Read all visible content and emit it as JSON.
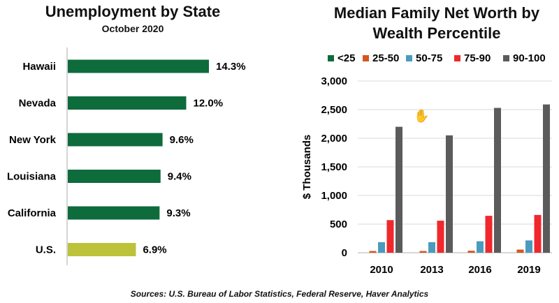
{
  "titles": {
    "left_title": "Unemployment by State",
    "left_subtitle": "October 2020",
    "right_title_line1": "Median Family Net Worth by",
    "right_title_line2": "Wealth Percentile"
  },
  "source": "Sources: U.S. Bureau of Labor Statistics, Federal Reserve, Haver Analytics",
  "colors": {
    "state_bar": "#0e6b3c",
    "us_bar": "#bcc23a",
    "axis": "#c8c8c8",
    "grid": "#d9d9d9",
    "series": [
      "#0e6b3c",
      "#d3581f",
      "#4a9bbd",
      "#f0282d",
      "#5b5b5b"
    ]
  },
  "chart_data": [
    {
      "type": "bar",
      "orientation": "horizontal",
      "title": "Unemployment by State",
      "subtitle": "October 2020",
      "categories": [
        "Hawaii",
        "Nevada",
        "New York",
        "Louisiana",
        "California",
        "U.S."
      ],
      "values": [
        14.3,
        12.0,
        9.6,
        9.4,
        9.3,
        6.9
      ],
      "value_labels": [
        "14.3%",
        "12.0%",
        "9.6%",
        "9.4%",
        "9.3%",
        "6.9%"
      ],
      "xlim": [
        0,
        14.3
      ],
      "grid": false
    },
    {
      "type": "bar",
      "title": "Median Family Net Worth by Wealth Percentile",
      "categories": [
        "2010",
        "2013",
        "2016",
        "2019"
      ],
      "series": [
        {
          "name": "<25",
          "values": [
            0,
            0,
            0,
            0
          ]
        },
        {
          "name": "25-50",
          "values": [
            30,
            30,
            35,
            55
          ]
        },
        {
          "name": "50-75",
          "values": [
            185,
            185,
            200,
            215
          ]
        },
        {
          "name": "75-90",
          "values": [
            570,
            560,
            645,
            660
          ]
        },
        {
          "name": "90-100",
          "values": [
            2200,
            2050,
            2530,
            2590
          ]
        }
      ],
      "ylabel": "$ Thousands",
      "ylim": [
        0,
        3000
      ],
      "yticks": [
        "0",
        "500",
        "1,000",
        "1,500",
        "2,000",
        "2,500",
        "3,000"
      ],
      "legend": "top",
      "grid": true
    }
  ]
}
